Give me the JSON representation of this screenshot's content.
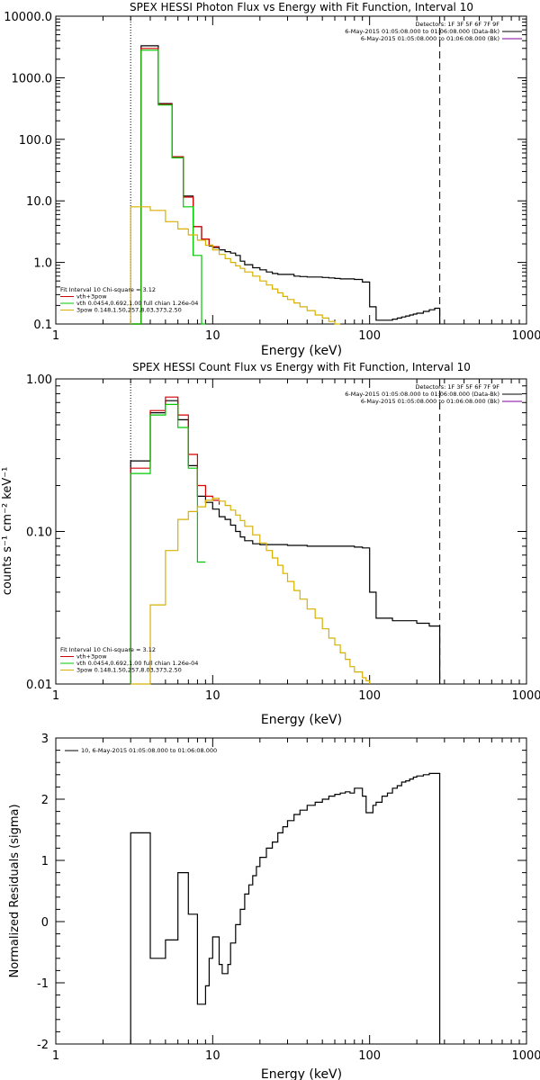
{
  "colors": {
    "black": "#000000",
    "red": "#d40000",
    "green": "#00c800",
    "yellow": "#d8b000",
    "purple": "#8000a0"
  },
  "chart_data": [
    {
      "type": "line",
      "title": "SPEX HESSI Photon Flux vs Energy with Fit Function, Interval 10",
      "xlabel": "Energy (keV)",
      "ylabel": "",
      "xscale": "log",
      "yscale": "log",
      "xlim": [
        1,
        1000
      ],
      "ylim": [
        0.1,
        10000
      ],
      "xticks": [
        "1",
        "10",
        "100",
        "1000"
      ],
      "yticks": [
        "0.1",
        "1.0",
        "10.0",
        "100.0",
        "1000.0",
        "10000.0"
      ],
      "vlines": {
        "dotted": 3,
        "dashed": 280
      },
      "legend_right": {
        "lines": [
          "Detectors: 1F 3F 5F 6F 7F 9F",
          "6-May-2015 01:05:08.000 to 01:06:08.000 (Data-Bk)",
          "6-May-2015 01:05:08.000 to 01:06:08.000 (Bk)"
        ],
        "colors": [
          "#000000",
          "#000000",
          "#8000a0"
        ]
      },
      "legend_left": {
        "lines": [
          "Fit Interval 10    Chi-square = 3.12",
          "vth+3pow",
          "vth 0.0454,0.692,1.00  full chian 1.26e-04",
          "3pow 0.148,1.50,257,8.03,373,2.50"
        ],
        "colors": [
          "#000000",
          "#d40000",
          "#00c800",
          "#d8b000"
        ]
      },
      "series": [
        {
          "color": "#000000",
          "x": [
            3,
            3.5,
            4,
            4.5,
            5,
            5.5,
            6,
            6.5,
            7,
            7.5,
            8,
            8.5,
            9,
            9.5,
            10,
            11,
            12,
            13,
            14,
            15,
            16,
            18,
            20,
            22,
            24,
            26,
            28,
            30,
            33,
            36,
            40,
            45,
            50,
            55,
            60,
            65,
            70,
            80,
            90,
            100,
            110,
            120,
            130,
            140,
            150,
            160,
            170,
            180,
            190,
            200,
            220,
            240,
            260,
            280
          ],
          "y": [
            0.1,
            3300,
            3300,
            380,
            380,
            52,
            52,
            12,
            12,
            3.8,
            3.8,
            2.4,
            2.4,
            1.85,
            1.75,
            1.6,
            1.5,
            1.42,
            1.3,
            1.05,
            0.92,
            0.82,
            0.76,
            0.7,
            0.66,
            0.64,
            0.64,
            0.64,
            0.6,
            0.59,
            0.58,
            0.58,
            0.57,
            0.56,
            0.55,
            0.54,
            0.54,
            0.53,
            0.48,
            0.19,
            0.115,
            0.115,
            0.115,
            0.12,
            0.125,
            0.13,
            0.135,
            0.14,
            0.145,
            0.15,
            0.16,
            0.17,
            0.18,
            0.1
          ]
        },
        {
          "color": "#d40000",
          "x": [
            3,
            3.5,
            4,
            4.5,
            5,
            5.5,
            6,
            6.5,
            7,
            7.5,
            8,
            8.5,
            9,
            9.5,
            10,
            11
          ],
          "y": [
            0.1,
            3000,
            3000,
            370,
            370,
            52,
            52,
            11.5,
            11.5,
            3.8,
            3.8,
            2.4,
            2.4,
            1.9,
            1.8,
            1.7
          ]
        },
        {
          "color": "#00c800",
          "x": [
            3,
            3.5,
            4,
            4.5,
            5,
            5.5,
            6,
            6.5,
            7,
            7.5,
            8,
            8.5,
            9
          ],
          "y": [
            0.1,
            2800,
            2800,
            360,
            360,
            50,
            50,
            8,
            8,
            1.3,
            1.3,
            0.1,
            0.1
          ]
        },
        {
          "color": "#d8b000",
          "x": [
            3,
            4,
            5,
            6,
            7,
            8,
            9,
            10,
            11,
            12,
            13,
            14,
            15,
            16,
            18,
            20,
            22,
            24,
            26,
            28,
            30,
            33,
            36,
            40,
            45,
            50,
            55,
            60,
            65
          ],
          "y": [
            8,
            7,
            4.6,
            3.5,
            2.8,
            2.3,
            1.9,
            1.6,
            1.35,
            1.15,
            1,
            0.88,
            0.8,
            0.7,
            0.6,
            0.5,
            0.43,
            0.37,
            0.32,
            0.28,
            0.25,
            0.22,
            0.19,
            0.165,
            0.14,
            0.125,
            0.11,
            0.1,
            0.1
          ]
        }
      ]
    },
    {
      "type": "line",
      "title": "SPEX HESSI Count Flux vs Energy with Fit Function, Interval 10",
      "xlabel": "Energy (keV)",
      "ylabel": "counts s⁻¹ cm⁻² keV⁻¹",
      "xscale": "log",
      "yscale": "log",
      "xlim": [
        1,
        1000
      ],
      "ylim": [
        0.01,
        1
      ],
      "xticks": [
        "1",
        "10",
        "100",
        "1000"
      ],
      "yticks": [
        "0.01",
        "0.10",
        "1.00"
      ],
      "vlines": {
        "dotted": 3,
        "dashed": 280
      },
      "legend_right": {
        "lines": [
          "Detectors: 1F 3F 5F 6F 7F 9F",
          "6-May-2015 01:05:08.000 to 01:06:08.000 (Data-Bk)",
          "6-May-2015 01:05:08.000 to 01:06:08.000 (Bk)"
        ],
        "colors": [
          "#000000",
          "#000000",
          "#8000a0"
        ]
      },
      "legend_left": {
        "lines": [
          "Fit Interval 10    Chi-square = 3.12",
          "vth+3pow",
          "vth 0.0454,0.692,1.00  full chian 1.26e-04",
          "3pow 0.148,1.50,257,8.03,373,2.50"
        ],
        "colors": [
          "#000000",
          "#d40000",
          "#00c800",
          "#d8b000"
        ]
      },
      "series": [
        {
          "color": "#000000",
          "x": [
            3,
            4,
            5,
            6,
            7,
            8,
            9,
            10,
            11,
            12,
            13,
            14,
            15,
            16,
            18,
            20,
            25,
            30,
            40,
            50,
            60,
            70,
            80,
            90,
            100,
            110,
            120,
            140,
            160,
            200,
            240,
            280
          ],
          "y": [
            0.29,
            0.6,
            0.72,
            0.54,
            0.27,
            0.17,
            0.155,
            0.14,
            0.125,
            0.12,
            0.11,
            0.1,
            0.092,
            0.087,
            0.083,
            0.082,
            0.082,
            0.081,
            0.08,
            0.08,
            0.08,
            0.08,
            0.079,
            0.078,
            0.04,
            0.027,
            0.027,
            0.026,
            0.026,
            0.025,
            0.024,
            0.024
          ]
        },
        {
          "color": "#d40000",
          "x": [
            3,
            4,
            5,
            6,
            7,
            8,
            9,
            10,
            11
          ],
          "y": [
            0.26,
            0.62,
            0.76,
            0.58,
            0.32,
            0.2,
            0.17,
            0.16,
            0.15
          ]
        },
        {
          "color": "#00c800",
          "x": [
            3,
            4,
            5,
            6,
            7,
            8,
            9
          ],
          "y": [
            0.24,
            0.58,
            0.68,
            0.48,
            0.26,
            0.063,
            0.063
          ]
        },
        {
          "color": "#d8b000",
          "x": [
            3,
            4,
            5,
            6,
            7,
            8,
            9,
            10,
            11,
            12,
            13,
            14,
            15,
            16,
            18,
            20,
            22,
            24,
            26,
            28,
            30,
            33,
            36,
            40,
            45,
            50,
            55,
            60,
            65,
            70,
            75,
            80,
            90,
            95,
            100
          ],
          "y": [
            0.01,
            0.033,
            0.075,
            0.12,
            0.135,
            0.145,
            0.16,
            0.165,
            0.158,
            0.148,
            0.138,
            0.128,
            0.118,
            0.108,
            0.095,
            0.084,
            0.075,
            0.067,
            0.06,
            0.053,
            0.047,
            0.041,
            0.036,
            0.031,
            0.027,
            0.023,
            0.02,
            0.018,
            0.016,
            0.0145,
            0.013,
            0.012,
            0.011,
            0.0105,
            0.01
          ]
        }
      ]
    },
    {
      "type": "line",
      "title": "",
      "xlabel": "Energy (keV)",
      "ylabel": "Normalized Residuals (sigma)",
      "xscale": "log",
      "yscale": "linear",
      "xlim": [
        1,
        1000
      ],
      "ylim": [
        -2,
        3
      ],
      "xticks": [
        "1",
        "10",
        "100",
        "1000"
      ],
      "yticks": [
        "-2",
        "-1",
        "0",
        "1",
        "2",
        "3"
      ],
      "legend": "10,  6-May-2015 01:05:08.000 to 01:06:08.000",
      "series": [
        {
          "color": "#000000",
          "x": [
            3,
            4,
            4.5,
            5,
            5.5,
            6,
            6.5,
            7,
            7.5,
            8,
            8.5,
            9,
            9.5,
            10,
            10.5,
            11,
            11.5,
            12,
            12.5,
            13,
            14,
            15,
            16,
            17,
            18,
            19,
            20,
            22,
            24,
            26,
            28,
            30,
            33,
            36,
            40,
            45,
            50,
            55,
            60,
            65,
            70,
            75,
            80,
            90,
            95,
            100,
            105,
            110,
            120,
            130,
            140,
            150,
            160,
            170,
            180,
            190,
            200,
            220,
            240,
            260,
            280
          ],
          "y": [
            1.45,
            -0.6,
            -0.6,
            -0.3,
            -0.3,
            0.8,
            0.8,
            0.12,
            0.12,
            -1.35,
            -1.35,
            -1.05,
            -0.6,
            -0.25,
            -0.25,
            -0.7,
            -0.85,
            -0.85,
            -0.7,
            -0.35,
            -0.05,
            0.2,
            0.45,
            0.6,
            0.75,
            0.9,
            1.05,
            1.2,
            1.3,
            1.45,
            1.55,
            1.65,
            1.75,
            1.82,
            1.9,
            1.95,
            2.0,
            2.05,
            2.08,
            2.1,
            2.12,
            2.1,
            2.18,
            2.05,
            1.78,
            1.78,
            1.9,
            1.95,
            2.05,
            2.1,
            2.18,
            2.22,
            2.28,
            2.3,
            2.33,
            2.36,
            2.38,
            2.4,
            2.42,
            2.42,
            2.42
          ]
        }
      ]
    }
  ]
}
